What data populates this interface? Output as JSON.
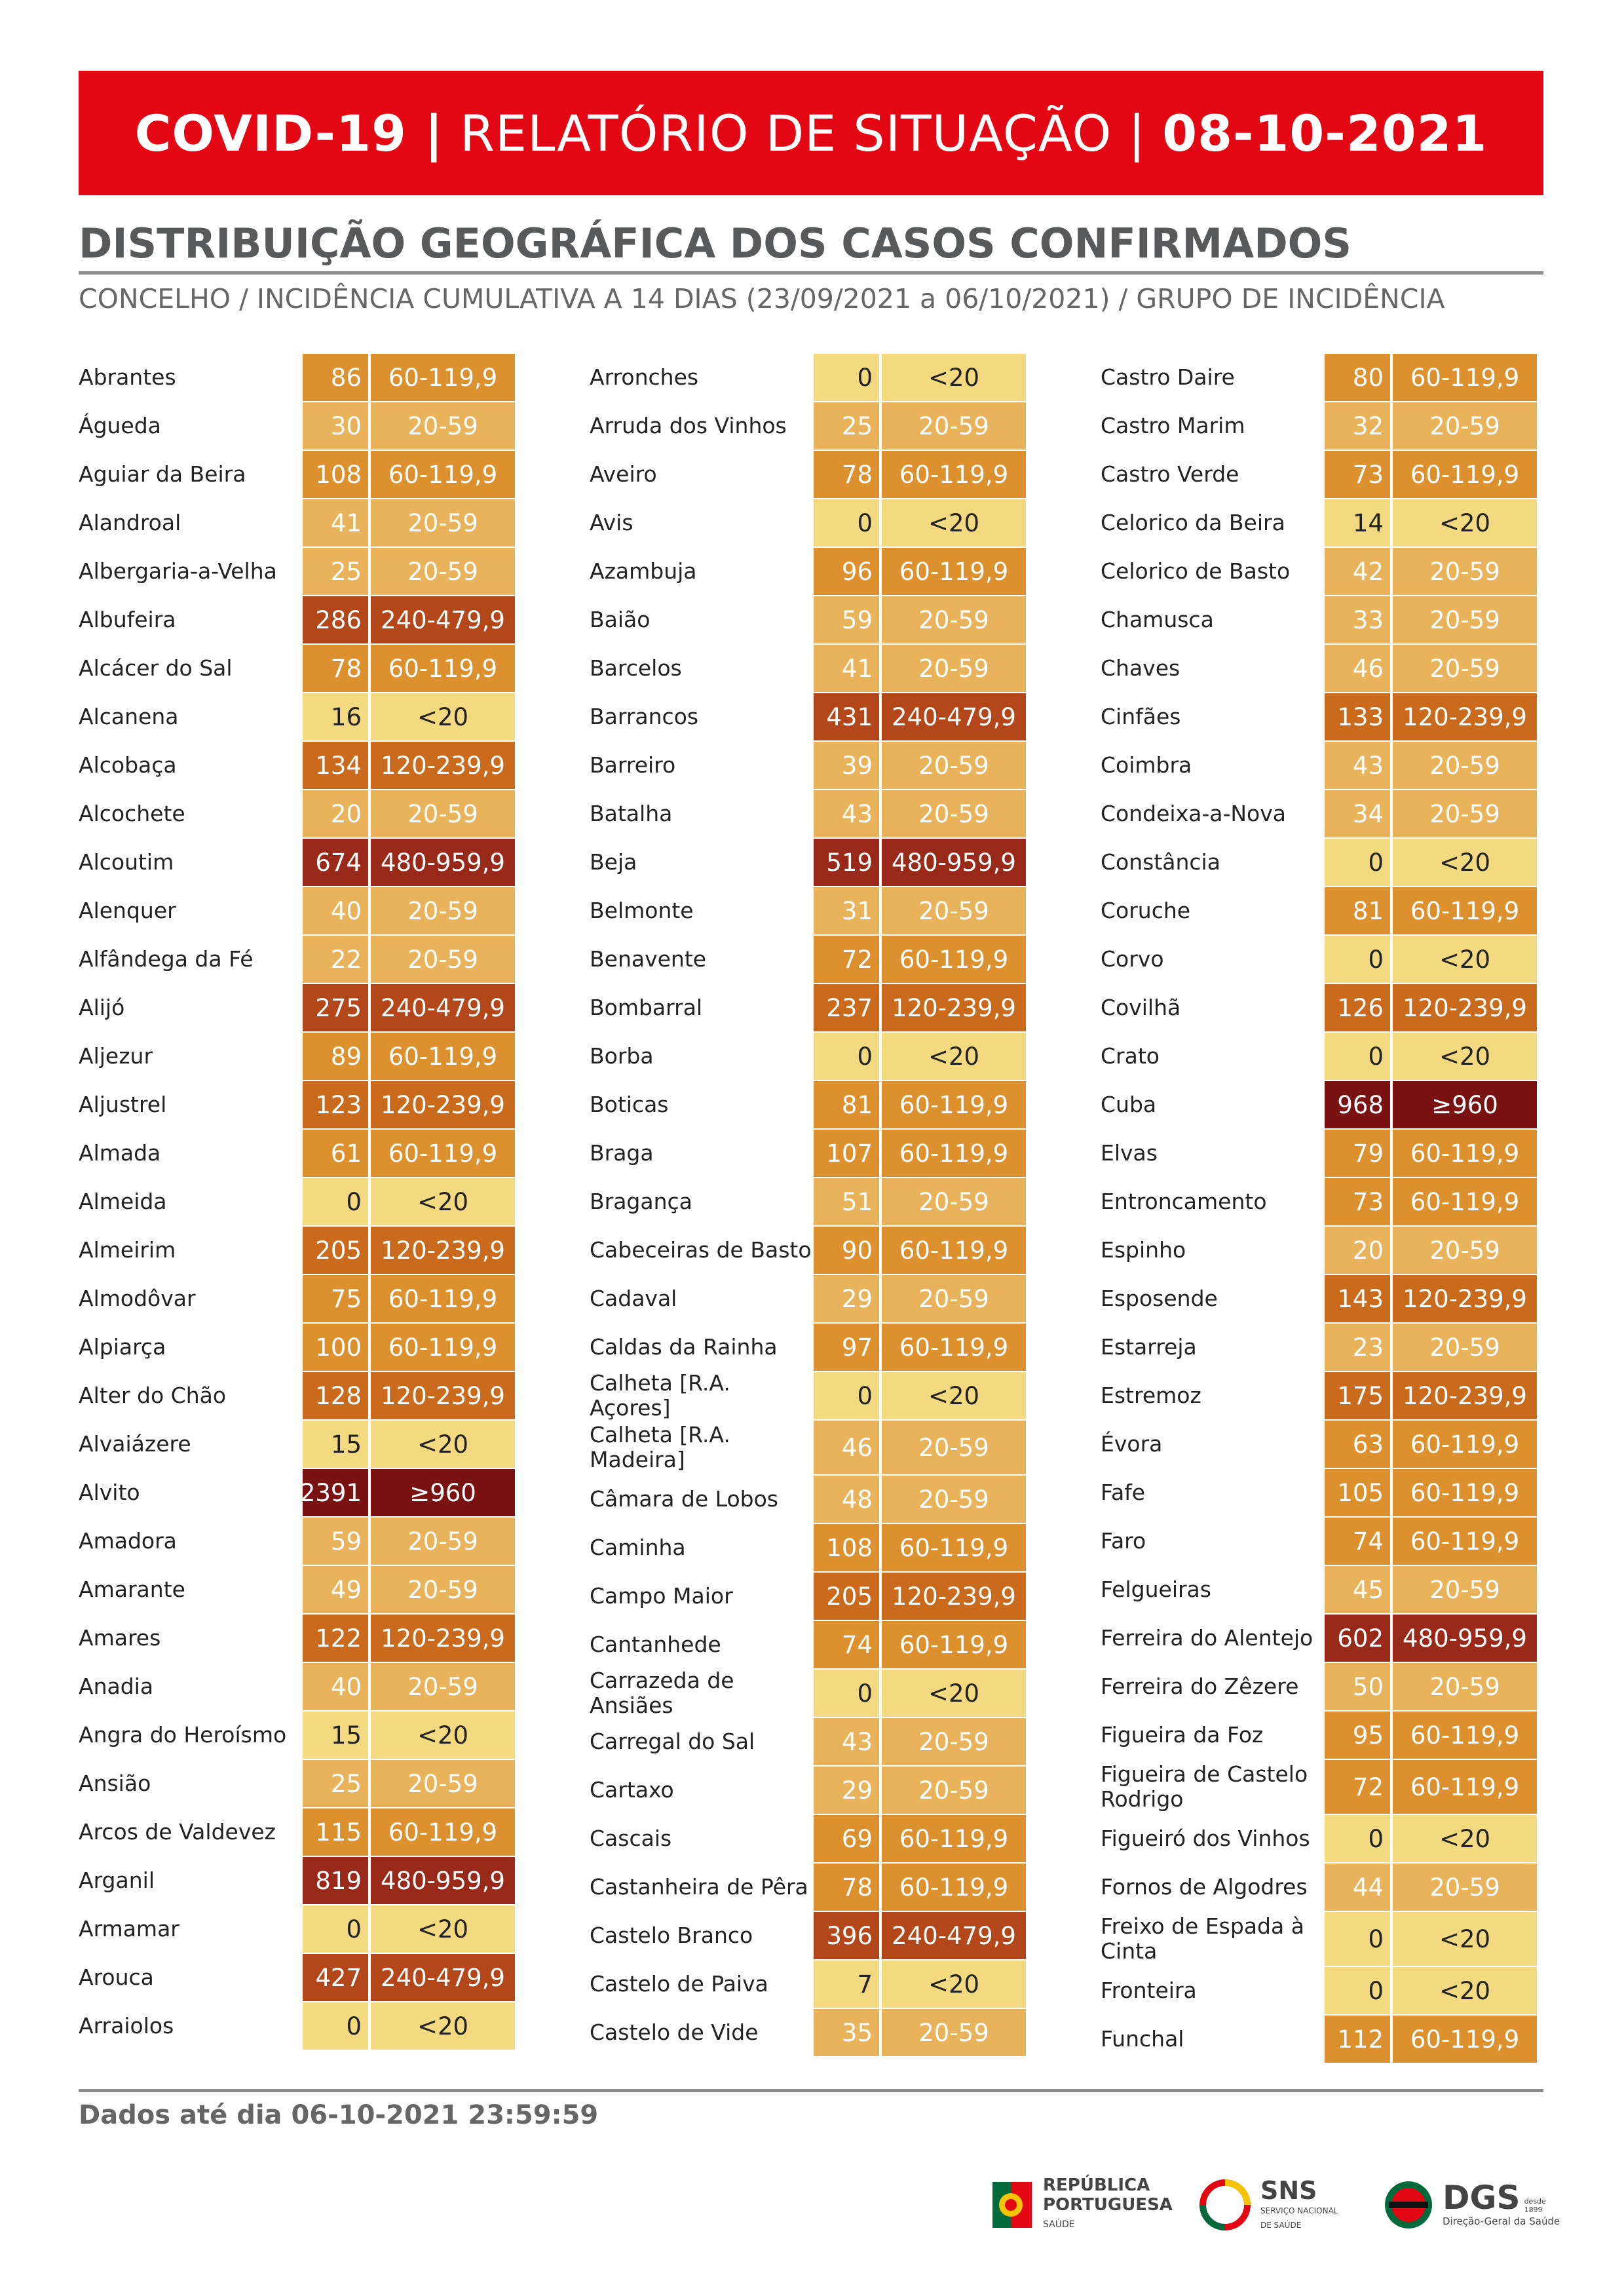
{
  "header": {
    "part1": "COVID-19 |",
    "part2": " RELATÓRIO DE SITUAÇÃO | ",
    "part3": "08-10-2021"
  },
  "title": "DISTRIBUIÇÃO GEOGRÁFICA DOS CASOS CONFIRMADOS",
  "subtitle": "CONCELHO / INCIDÊNCIA CUMULATIVA A 14 DIAS (23/09/2021 a 06/10/2021) / GRUPO DE INCIDÊNCIA",
  "groups": [
    "<20",
    "20-59",
    "60-119,9",
    "120-239,9",
    "240-479,9",
    "480-959,9",
    "≥960"
  ],
  "group_colors": [
    "#f3da80",
    "#e8b35a",
    "#dd902e",
    "#c96a1c",
    "#b4471a",
    "#992a1a",
    "#7a1212"
  ],
  "columns": [
    [
      {
        "name": "Abrantes",
        "value": "86",
        "group": "60-119,9"
      },
      {
        "name": "Águeda",
        "value": "30",
        "group": "20-59"
      },
      {
        "name": "Aguiar da Beira",
        "value": "108",
        "group": "60-119,9"
      },
      {
        "name": "Alandroal",
        "value": "41",
        "group": "20-59"
      },
      {
        "name": "Albergaria-a-Velha",
        "value": "25",
        "group": "20-59"
      },
      {
        "name": "Albufeira",
        "value": "286",
        "group": "240-479,9"
      },
      {
        "name": "Alcácer do Sal",
        "value": "78",
        "group": "60-119,9"
      },
      {
        "name": "Alcanena",
        "value": "16",
        "group": "<20"
      },
      {
        "name": "Alcobaça",
        "value": "134",
        "group": "120-239,9"
      },
      {
        "name": "Alcochete",
        "value": "20",
        "group": "20-59"
      },
      {
        "name": "Alcoutim",
        "value": "674",
        "group": "480-959,9"
      },
      {
        "name": "Alenquer",
        "value": "40",
        "group": "20-59"
      },
      {
        "name": "Alfândega da Fé",
        "value": "22",
        "group": "20-59"
      },
      {
        "name": "Alijó",
        "value": "275",
        "group": "240-479,9"
      },
      {
        "name": "Aljezur",
        "value": "89",
        "group": "60-119,9"
      },
      {
        "name": "Aljustrel",
        "value": "123",
        "group": "120-239,9"
      },
      {
        "name": "Almada",
        "value": "61",
        "group": "60-119,9"
      },
      {
        "name": "Almeida",
        "value": "0",
        "group": "<20"
      },
      {
        "name": "Almeirim",
        "value": "205",
        "group": "120-239,9"
      },
      {
        "name": "Almodôvar",
        "value": "75",
        "group": "60-119,9"
      },
      {
        "name": "Alpiarça",
        "value": "100",
        "group": "60-119,9"
      },
      {
        "name": "Alter do Chão",
        "value": "128",
        "group": "120-239,9"
      },
      {
        "name": "Alvaiázere",
        "value": "15",
        "group": "<20"
      },
      {
        "name": "Alvito",
        "value": "2391",
        "group": "≥960"
      },
      {
        "name": "Amadora",
        "value": "59",
        "group": "20-59"
      },
      {
        "name": "Amarante",
        "value": "49",
        "group": "20-59"
      },
      {
        "name": "Amares",
        "value": "122",
        "group": "120-239,9"
      },
      {
        "name": "Anadia",
        "value": "40",
        "group": "20-59"
      },
      {
        "name": "Angra do Heroísmo",
        "value": "15",
        "group": "<20"
      },
      {
        "name": "Ansião",
        "value": "25",
        "group": "20-59"
      },
      {
        "name": "Arcos de Valdevez",
        "value": "115",
        "group": "60-119,9"
      },
      {
        "name": "Arganil",
        "value": "819",
        "group": "480-959,9"
      },
      {
        "name": "Armamar",
        "value": "0",
        "group": "<20"
      },
      {
        "name": "Arouca",
        "value": "427",
        "group": "240-479,9"
      },
      {
        "name": "Arraiolos",
        "value": "0",
        "group": "<20"
      }
    ],
    [
      {
        "name": "Arronches",
        "value": "0",
        "group": "<20"
      },
      {
        "name": "Arruda dos Vinhos",
        "value": "25",
        "group": "20-59"
      },
      {
        "name": "Aveiro",
        "value": "78",
        "group": "60-119,9"
      },
      {
        "name": "Avis",
        "value": "0",
        "group": "<20"
      },
      {
        "name": "Azambuja",
        "value": "96",
        "group": "60-119,9"
      },
      {
        "name": "Baião",
        "value": "59",
        "group": "20-59"
      },
      {
        "name": "Barcelos",
        "value": "41",
        "group": "20-59"
      },
      {
        "name": "Barrancos",
        "value": "431",
        "group": "240-479,9"
      },
      {
        "name": "Barreiro",
        "value": "39",
        "group": "20-59"
      },
      {
        "name": "Batalha",
        "value": "43",
        "group": "20-59"
      },
      {
        "name": "Beja",
        "value": "519",
        "group": "480-959,9"
      },
      {
        "name": "Belmonte",
        "value": "31",
        "group": "20-59"
      },
      {
        "name": "Benavente",
        "value": "72",
        "group": "60-119,9"
      },
      {
        "name": "Bombarral",
        "value": "237",
        "group": "120-239,9"
      },
      {
        "name": "Borba",
        "value": "0",
        "group": "<20"
      },
      {
        "name": "Boticas",
        "value": "81",
        "group": "60-119,9"
      },
      {
        "name": "Braga",
        "value": "107",
        "group": "60-119,9"
      },
      {
        "name": "Bragança",
        "value": "51",
        "group": "20-59"
      },
      {
        "name": "Cabeceiras de Basto",
        "value": "90",
        "group": "60-119,9"
      },
      {
        "name": "Cadaval",
        "value": "29",
        "group": "20-59"
      },
      {
        "name": "Caldas da Rainha",
        "value": "97",
        "group": "60-119,9"
      },
      {
        "name": "Calheta [R.A. Açores]",
        "value": "0",
        "group": "<20"
      },
      {
        "name": "Calheta [R.A. Madeira]",
        "value": "46",
        "group": "20-59",
        "tall": true
      },
      {
        "name": "Câmara de Lobos",
        "value": "48",
        "group": "20-59"
      },
      {
        "name": "Caminha",
        "value": "108",
        "group": "60-119,9"
      },
      {
        "name": "Campo Maior",
        "value": "205",
        "group": "120-239,9"
      },
      {
        "name": "Cantanhede",
        "value": "74",
        "group": "60-119,9"
      },
      {
        "name": "Carrazeda de Ansiães",
        "value": "0",
        "group": "<20"
      },
      {
        "name": "Carregal do Sal",
        "value": "43",
        "group": "20-59"
      },
      {
        "name": "Cartaxo",
        "value": "29",
        "group": "20-59"
      },
      {
        "name": "Cascais",
        "value": "69",
        "group": "60-119,9"
      },
      {
        "name": "Castanheira de Pêra",
        "value": "78",
        "group": "60-119,9"
      },
      {
        "name": "Castelo Branco",
        "value": "396",
        "group": "240-479,9"
      },
      {
        "name": "Castelo de Paiva",
        "value": "7",
        "group": "<20"
      },
      {
        "name": "Castelo de Vide",
        "value": "35",
        "group": "20-59"
      }
    ],
    [
      {
        "name": "Castro Daire",
        "value": "80",
        "group": "60-119,9"
      },
      {
        "name": "Castro Marim",
        "value": "32",
        "group": "20-59"
      },
      {
        "name": "Castro Verde",
        "value": "73",
        "group": "60-119,9"
      },
      {
        "name": "Celorico da Beira",
        "value": "14",
        "group": "<20"
      },
      {
        "name": "Celorico de Basto",
        "value": "42",
        "group": "20-59"
      },
      {
        "name": "Chamusca",
        "value": "33",
        "group": "20-59"
      },
      {
        "name": "Chaves",
        "value": "46",
        "group": "20-59"
      },
      {
        "name": "Cinfães",
        "value": "133",
        "group": "120-239,9"
      },
      {
        "name": "Coimbra",
        "value": "43",
        "group": "20-59"
      },
      {
        "name": "Condeixa-a-Nova",
        "value": "34",
        "group": "20-59"
      },
      {
        "name": "Constância",
        "value": "0",
        "group": "<20"
      },
      {
        "name": "Coruche",
        "value": "81",
        "group": "60-119,9"
      },
      {
        "name": "Corvo",
        "value": "0",
        "group": "<20"
      },
      {
        "name": "Covilhã",
        "value": "126",
        "group": "120-239,9"
      },
      {
        "name": "Crato",
        "value": "0",
        "group": "<20"
      },
      {
        "name": "Cuba",
        "value": "968",
        "group": "≥960"
      },
      {
        "name": "Elvas",
        "value": "79",
        "group": "60-119,9"
      },
      {
        "name": "Entroncamento",
        "value": "73",
        "group": "60-119,9"
      },
      {
        "name": "Espinho",
        "value": "20",
        "group": "20-59"
      },
      {
        "name": "Esposende",
        "value": "143",
        "group": "120-239,9"
      },
      {
        "name": "Estarreja",
        "value": "23",
        "group": "20-59"
      },
      {
        "name": "Estremoz",
        "value": "175",
        "group": "120-239,9"
      },
      {
        "name": "Évora",
        "value": "63",
        "group": "60-119,9"
      },
      {
        "name": "Fafe",
        "value": "105",
        "group": "60-119,9"
      },
      {
        "name": "Faro",
        "value": "74",
        "group": "60-119,9"
      },
      {
        "name": "Felgueiras",
        "value": "45",
        "group": "20-59"
      },
      {
        "name": "Ferreira do Alentejo",
        "value": "602",
        "group": "480-959,9"
      },
      {
        "name": "Ferreira do Zêzere",
        "value": "50",
        "group": "20-59"
      },
      {
        "name": "Figueira da Foz",
        "value": "95",
        "group": "60-119,9"
      },
      {
        "name": "Figueira de Castelo Rodrigo",
        "value": "72",
        "group": "60-119,9",
        "tall": true
      },
      {
        "name": "Figueiró dos Vinhos",
        "value": "0",
        "group": "<20"
      },
      {
        "name": "Fornos de Algodres",
        "value": "44",
        "group": "20-59"
      },
      {
        "name": "Freixo de Espada à Cinta",
        "value": "0",
        "group": "<20",
        "tall": true
      },
      {
        "name": "Fronteira",
        "value": "0",
        "group": "<20"
      },
      {
        "name": "Funchal",
        "value": "112",
        "group": "60-119,9"
      }
    ]
  ],
  "footer": "Dados até dia 06-10-2021 23:59:59",
  "logos": {
    "republica_line1": "REPÚBLICA",
    "republica_line2": "PORTUGUESA",
    "republica_line3": "SAÚDE",
    "sns": "SNS",
    "sns_sub1": "SERVIÇO NACIONAL",
    "sns_sub2": "DE SAÚDE",
    "dgs": "DGS",
    "dgs_since": "desde 1899",
    "dgs_sub": "Direção-Geral da Saúde"
  }
}
